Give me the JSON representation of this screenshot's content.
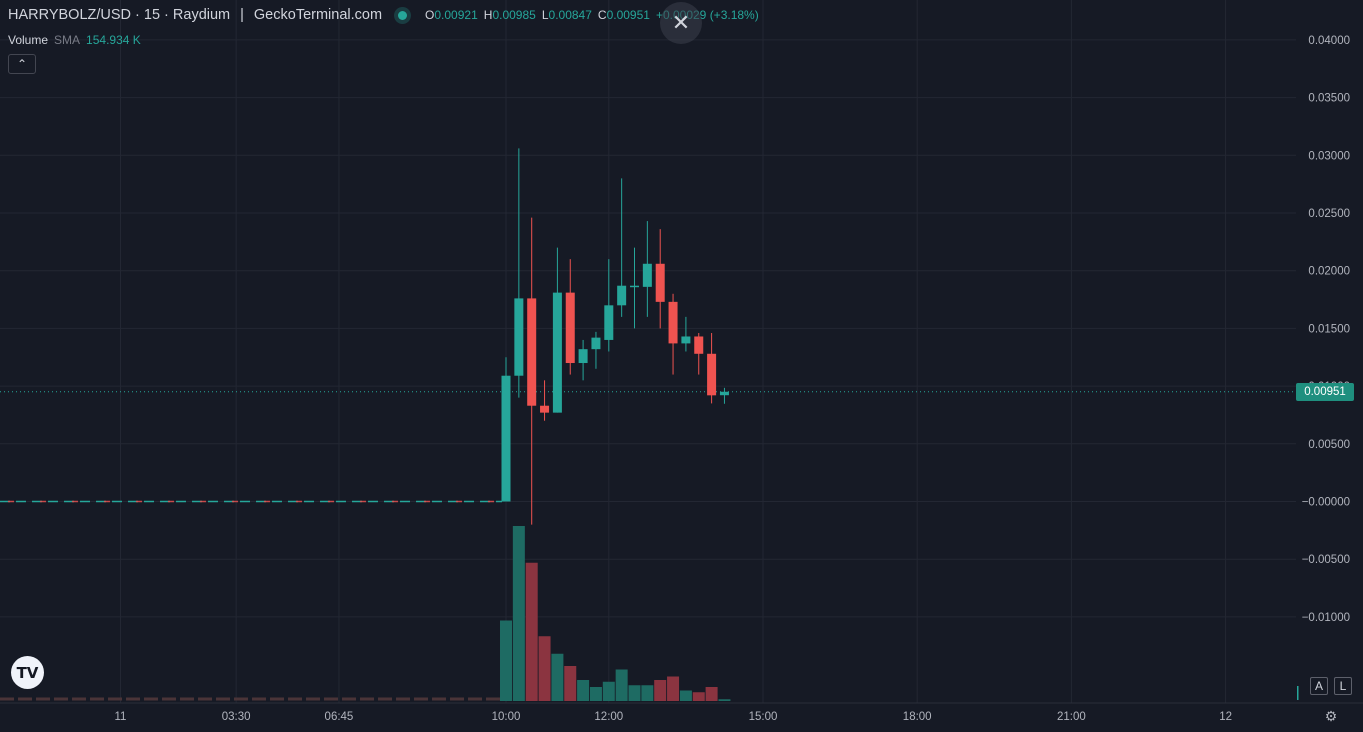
{
  "header": {
    "symbol": "HARRYBOLZ/USD · 15 · Raydium",
    "separator": "|",
    "source": "GeckoTerminal.com",
    "ohlc": [
      {
        "key": "O",
        "value": "0.00921"
      },
      {
        "key": "H",
        "value": "0.00985"
      },
      {
        "key": "L",
        "value": "0.00847"
      },
      {
        "key": "C",
        "value": "0.00951"
      },
      {
        "key": "",
        "value": "+0.00029 (+3.18%)"
      }
    ]
  },
  "volume": {
    "label": "Volume",
    "sma": "SMA",
    "value": "154.934 K"
  },
  "controls": {
    "collapse": "⌃",
    "close": "✕",
    "scale_auto": "A",
    "scale_log": "L",
    "settings": "⚙",
    "logo": "TV"
  },
  "colors": {
    "up": "#26a69a",
    "down": "#ef5350",
    "vol_up": "#1e6b63",
    "vol_down": "#8b3440",
    "background": "#161a25",
    "grid": "#232733"
  },
  "price_axis": {
    "ticks": [
      {
        "label": "0.04000",
        "value": 0.04
      },
      {
        "label": "0.03500",
        "value": 0.035
      },
      {
        "label": "0.03000",
        "value": 0.03
      },
      {
        "label": "0.02500",
        "value": 0.025
      },
      {
        "label": "0.02000",
        "value": 0.02
      },
      {
        "label": "0.01500",
        "value": 0.015
      },
      {
        "label": "0.01000",
        "value": 0.01
      },
      {
        "label": "0.00500",
        "value": 0.005
      },
      {
        "label": "−0.00000",
        "value": 0.0
      },
      {
        "label": "−0.00500",
        "value": -0.005
      },
      {
        "label": "−0.01000",
        "value": -0.01
      }
    ],
    "current_price": "0.00951"
  },
  "time_axis": {
    "ticks": [
      {
        "label": "21:00",
        "slot": -45
      },
      {
        "label": "11",
        "slot": -30
      },
      {
        "label": "03:30",
        "slot": -21
      },
      {
        "label": "06:45",
        "slot": -13
      },
      {
        "label": "10:00",
        "slot": 0
      },
      {
        "label": "12:00",
        "slot": 8
      },
      {
        "label": "15:00",
        "slot": 20
      },
      {
        "label": "18:00",
        "slot": 32
      },
      {
        "label": "21:00",
        "slot": 44
      },
      {
        "label": "12",
        "slot": 56
      }
    ]
  },
  "chart_data": {
    "type": "candlestick",
    "interval": "15",
    "candles": [
      {
        "o": 0.0,
        "h": 0.0125,
        "l": 0.0,
        "c": 0.0109
      },
      {
        "o": 0.0109,
        "h": 0.0306,
        "l": 0.009,
        "c": 0.0176
      },
      {
        "o": 0.0176,
        "h": 0.0246,
        "l": -0.002,
        "c": 0.0083
      },
      {
        "o": 0.0083,
        "h": 0.0105,
        "l": 0.007,
        "c": 0.0077
      },
      {
        "o": 0.0077,
        "h": 0.022,
        "l": 0.0077,
        "c": 0.0181
      },
      {
        "o": 0.0181,
        "h": 0.021,
        "l": 0.011,
        "c": 0.012
      },
      {
        "o": 0.012,
        "h": 0.014,
        "l": 0.0105,
        "c": 0.0132
      },
      {
        "o": 0.0132,
        "h": 0.0147,
        "l": 0.0115,
        "c": 0.0142
      },
      {
        "o": 0.014,
        "h": 0.021,
        "l": 0.013,
        "c": 0.017
      },
      {
        "o": 0.017,
        "h": 0.028,
        "l": 0.016,
        "c": 0.0187
      },
      {
        "o": 0.0187,
        "h": 0.022,
        "l": 0.015,
        "c": 0.0187
      },
      {
        "o": 0.0186,
        "h": 0.0243,
        "l": 0.016,
        "c": 0.0206
      },
      {
        "o": 0.0206,
        "h": 0.0236,
        "l": 0.015,
        "c": 0.0173
      },
      {
        "o": 0.0173,
        "h": 0.018,
        "l": 0.011,
        "c": 0.0137
      },
      {
        "o": 0.0137,
        "h": 0.016,
        "l": 0.013,
        "c": 0.0143
      },
      {
        "o": 0.0143,
        "h": 0.0146,
        "l": 0.011,
        "c": 0.0128
      },
      {
        "o": 0.0128,
        "h": 0.0146,
        "l": 0.0085,
        "c": 0.0092
      },
      {
        "o": 0.00921,
        "h": 0.00985,
        "l": 0.00847,
        "c": 0.00951
      }
    ],
    "volumes_relative": [
      0.46,
      1.0,
      0.79,
      0.37,
      0.27,
      0.2,
      0.12,
      0.08,
      0.11,
      0.18,
      0.09,
      0.09,
      0.12,
      0.14,
      0.06,
      0.05,
      0.08,
      0.01
    ]
  }
}
